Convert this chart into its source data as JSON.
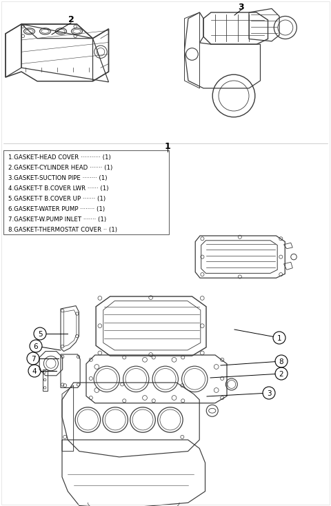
{
  "background_color": "#ffffff",
  "parts_list_lines": [
    "1.GASKET-HEAD COVER ··········· (1)",
    "2.GASKET-CYLINDER HEAD ······· (1)",
    "3.GASKET-SUCTION PIPE ········ (1)",
    "4.GASKET-T B.COVER LWR ······ (1)",
    "5.GASKET-T B.COVER UP ······· (1)",
    "6.GASKET-WATER PUMP ········ (1)",
    "7.GASKET-W.PUMP INLET ······· (1)",
    "8.GASKET-THERMOSTAT COVER ·· (1)"
  ],
  "fig_width": 4.8,
  "fig_height": 7.34,
  "dpi": 100
}
